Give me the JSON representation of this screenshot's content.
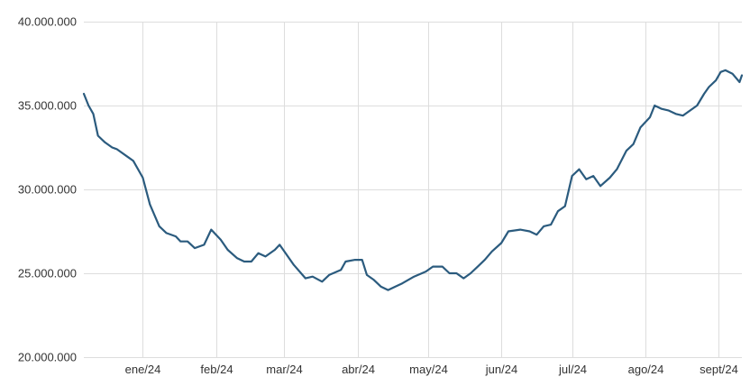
{
  "chart_data": {
    "type": "line",
    "title": "",
    "xlabel": "",
    "ylabel": "",
    "grid": true,
    "line_color": "#2b5b7e",
    "grid_color": "#dddddd",
    "ylim": [
      20000000,
      40000000
    ],
    "y_ticks": [
      {
        "value": 20000000,
        "label": "20.000.000"
      },
      {
        "value": 25000000,
        "label": "25.000.000"
      },
      {
        "value": 30000000,
        "label": "30.000.000"
      },
      {
        "value": 35000000,
        "label": "35.000.000"
      },
      {
        "value": 40000000,
        "label": "40.000.000"
      }
    ],
    "x_ticks": [
      {
        "date": "2024-01-01",
        "label": "ene/24"
      },
      {
        "date": "2024-02-01",
        "label": "feb/24"
      },
      {
        "date": "2024-03-01",
        "label": "mar/24"
      },
      {
        "date": "2024-04-01",
        "label": "abr/24"
      },
      {
        "date": "2024-05-01",
        "label": "may/24"
      },
      {
        "date": "2024-06-01",
        "label": "jun/24"
      },
      {
        "date": "2024-07-01",
        "label": "jul/24"
      },
      {
        "date": "2024-08-01",
        "label": "ago/24"
      },
      {
        "date": "2024-09-01",
        "label": "sept/24"
      }
    ],
    "xlim": [
      "2023-12-07",
      "2024-09-11"
    ],
    "series": [
      {
        "points": [
          [
            "2023-12-07",
            35700000
          ],
          [
            "2023-12-09",
            35000000
          ],
          [
            "2023-12-11",
            34500000
          ],
          [
            "2023-12-13",
            33200000
          ],
          [
            "2023-12-16",
            32800000
          ],
          [
            "2023-12-19",
            32500000
          ],
          [
            "2023-12-21",
            32400000
          ],
          [
            "2023-12-26",
            31900000
          ],
          [
            "2023-12-28",
            31700000
          ],
          [
            "2024-01-01",
            30700000
          ],
          [
            "2024-01-04",
            29100000
          ],
          [
            "2024-01-08",
            27800000
          ],
          [
            "2024-01-11",
            27400000
          ],
          [
            "2024-01-15",
            27200000
          ],
          [
            "2024-01-17",
            26900000
          ],
          [
            "2024-01-20",
            26900000
          ],
          [
            "2024-01-23",
            26500000
          ],
          [
            "2024-01-27",
            26700000
          ],
          [
            "2024-01-30",
            27600000
          ],
          [
            "2024-02-03",
            27000000
          ],
          [
            "2024-02-06",
            26400000
          ],
          [
            "2024-02-10",
            25900000
          ],
          [
            "2024-02-13",
            25700000
          ],
          [
            "2024-02-16",
            25700000
          ],
          [
            "2024-02-19",
            26200000
          ],
          [
            "2024-02-22",
            26000000
          ],
          [
            "2024-02-26",
            26400000
          ],
          [
            "2024-02-28",
            26700000
          ],
          [
            "2024-03-01",
            26300000
          ],
          [
            "2024-03-05",
            25500000
          ],
          [
            "2024-03-10",
            24700000
          ],
          [
            "2024-03-13",
            24800000
          ],
          [
            "2024-03-17",
            24500000
          ],
          [
            "2024-03-20",
            24900000
          ],
          [
            "2024-03-25",
            25200000
          ],
          [
            "2024-03-27",
            25700000
          ],
          [
            "2024-03-31",
            25800000
          ],
          [
            "2024-04-03",
            25800000
          ],
          [
            "2024-04-05",
            24900000
          ],
          [
            "2024-04-08",
            24600000
          ],
          [
            "2024-04-11",
            24200000
          ],
          [
            "2024-04-14",
            24000000
          ],
          [
            "2024-04-17",
            24200000
          ],
          [
            "2024-04-20",
            24400000
          ],
          [
            "2024-04-25",
            24800000
          ],
          [
            "2024-04-30",
            25100000
          ],
          [
            "2024-05-03",
            25400000
          ],
          [
            "2024-05-07",
            25400000
          ],
          [
            "2024-05-10",
            25000000
          ],
          [
            "2024-05-13",
            25000000
          ],
          [
            "2024-05-16",
            24700000
          ],
          [
            "2024-05-19",
            25000000
          ],
          [
            "2024-05-22",
            25400000
          ],
          [
            "2024-05-25",
            25800000
          ],
          [
            "2024-05-28",
            26300000
          ],
          [
            "2024-06-01",
            26800000
          ],
          [
            "2024-06-04",
            27500000
          ],
          [
            "2024-06-09",
            27600000
          ],
          [
            "2024-06-13",
            27500000
          ],
          [
            "2024-06-16",
            27300000
          ],
          [
            "2024-06-19",
            27800000
          ],
          [
            "2024-06-22",
            27900000
          ],
          [
            "2024-06-25",
            28700000
          ],
          [
            "2024-06-28",
            29000000
          ],
          [
            "2024-07-01",
            30800000
          ],
          [
            "2024-07-04",
            31200000
          ],
          [
            "2024-07-07",
            30600000
          ],
          [
            "2024-07-10",
            30800000
          ],
          [
            "2024-07-13",
            30200000
          ],
          [
            "2024-07-17",
            30700000
          ],
          [
            "2024-07-20",
            31200000
          ],
          [
            "2024-07-24",
            32300000
          ],
          [
            "2024-07-27",
            32700000
          ],
          [
            "2024-07-30",
            33700000
          ],
          [
            "2024-08-03",
            34300000
          ],
          [
            "2024-08-05",
            35000000
          ],
          [
            "2024-08-08",
            34800000
          ],
          [
            "2024-08-11",
            34700000
          ],
          [
            "2024-08-14",
            34500000
          ],
          [
            "2024-08-17",
            34400000
          ],
          [
            "2024-08-20",
            34700000
          ],
          [
            "2024-08-23",
            35000000
          ],
          [
            "2024-08-26",
            35700000
          ],
          [
            "2024-08-28",
            36100000
          ],
          [
            "2024-08-31",
            36500000
          ],
          [
            "2024-09-02",
            37000000
          ],
          [
            "2024-09-04",
            37100000
          ],
          [
            "2024-09-07",
            36900000
          ],
          [
            "2024-09-10",
            36400000
          ],
          [
            "2024-09-11",
            36800000
          ]
        ]
      }
    ]
  }
}
